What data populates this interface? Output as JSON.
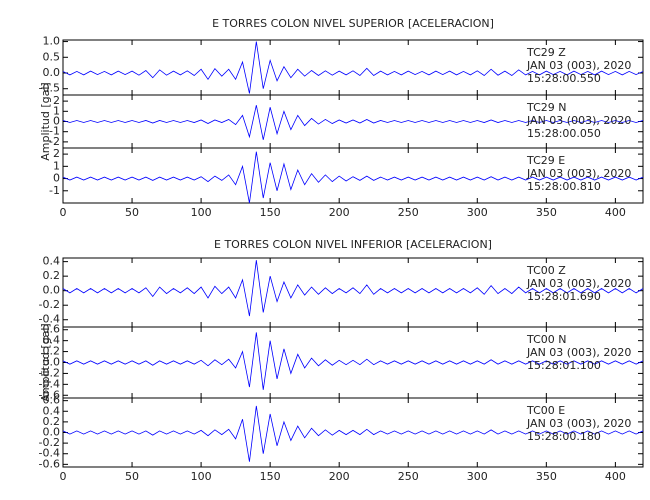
{
  "chart_data": [
    {
      "type": "line",
      "title": "E TORRES COLON NIVEL SUPERIOR [ACELERACION]",
      "ylabel": "Amplitud [gal]",
      "xlim": [
        0,
        420
      ],
      "xticks": [
        0,
        50,
        100,
        150,
        200,
        250,
        300,
        350,
        400
      ],
      "x": [
        0,
        5,
        10,
        15,
        20,
        25,
        30,
        35,
        40,
        45,
        50,
        55,
        60,
        65,
        70,
        75,
        80,
        85,
        90,
        95,
        100,
        105,
        110,
        115,
        120,
        125,
        130,
        135,
        140,
        145,
        150,
        155,
        160,
        165,
        170,
        175,
        180,
        185,
        190,
        195,
        200,
        205,
        210,
        215,
        220,
        225,
        230,
        235,
        240,
        245,
        250,
        255,
        260,
        265,
        270,
        275,
        280,
        285,
        290,
        295,
        300,
        305,
        310,
        315,
        320,
        325,
        330,
        335,
        340,
        345,
        350,
        355,
        360,
        365,
        370,
        375,
        380,
        385,
        390,
        395,
        400,
        405,
        410,
        415,
        420
      ],
      "panels": [
        {
          "ylim": [
            -0.7,
            1.05
          ],
          "yticks": [
            {
              "value": 1,
              "label": "1.0"
            },
            0.5,
            {
              "value": 0,
              "label": "0.0"
            },
            -0.5
          ],
          "annotations": [
            "JAN 03 (003), 2020",
            "15:28:00.550"
          ],
          "series": [
            {
              "name": "TC29 Z",
              "color": "#0000ff",
              "values": [
                0.05,
                -0.06,
                0.05,
                -0.06,
                0.06,
                -0.05,
                0.05,
                -0.06,
                0.06,
                -0.05,
                0.06,
                -0.07,
                0.08,
                -0.15,
                0.1,
                -0.07,
                0.06,
                -0.06,
                0.07,
                -0.08,
                0.12,
                -0.2,
                0.14,
                -0.1,
                0.12,
                -0.2,
                0.35,
                -0.65,
                1.0,
                -0.5,
                0.4,
                -0.25,
                0.2,
                -0.15,
                0.12,
                -0.1,
                0.08,
                -0.08,
                0.07,
                -0.07,
                0.06,
                -0.06,
                0.07,
                -0.08,
                0.15,
                -0.08,
                0.06,
                -0.06,
                0.05,
                -0.06,
                0.06,
                -0.05,
                0.05,
                -0.06,
                0.06,
                -0.05,
                0.06,
                -0.06,
                0.05,
                -0.06,
                0.07,
                -0.08,
                0.12,
                -0.07,
                0.06,
                -0.08,
                0.1,
                -0.06,
                0.05,
                -0.06,
                0.06,
                -0.05,
                0.05,
                -0.06,
                0.06,
                -0.05,
                0.05,
                -0.06,
                0.06,
                -0.05,
                0.05,
                -0.06,
                0.05,
                -0.05,
                0.05
              ]
            }
          ]
        },
        {
          "ylim": [
            -2.6,
            2.6
          ],
          "yticks": [
            2,
            1,
            0,
            -1,
            -2
          ],
          "annotations": [
            "JAN 03 (003), 2020",
            "15:28:00.050"
          ],
          "series": [
            {
              "name": "TC29 N",
              "color": "#0000ff",
              "values": [
                0.1,
                -0.1,
                0.1,
                -0.1,
                0.1,
                -0.1,
                0.1,
                -0.1,
                0.1,
                -0.1,
                0.1,
                -0.1,
                0.1,
                -0.15,
                0.1,
                -0.1,
                0.1,
                -0.1,
                0.1,
                -0.1,
                0.15,
                -0.2,
                0.15,
                -0.1,
                0.2,
                -0.3,
                0.6,
                -1.5,
                1.6,
                -1.8,
                1.4,
                -1.2,
                1.0,
                -0.8,
                0.6,
                -0.4,
                0.3,
                -0.25,
                0.2,
                -0.2,
                0.15,
                -0.15,
                0.15,
                -0.15,
                0.2,
                -0.15,
                0.1,
                -0.1,
                0.1,
                -0.1,
                0.1,
                -0.1,
                0.1,
                -0.1,
                0.1,
                -0.1,
                0.1,
                -0.1,
                0.1,
                -0.1,
                0.1,
                -0.1,
                0.15,
                -0.1,
                0.1,
                -0.1,
                0.1,
                -0.1,
                0.1,
                -0.1,
                0.1,
                -0.1,
                0.1,
                -0.1,
                0.1,
                -0.1,
                0.1,
                -0.1,
                0.1,
                -0.1,
                0.1,
                -0.1,
                0.1,
                -0.1,
                0.1
              ]
            }
          ]
        },
        {
          "ylim": [
            -2,
            2.5
          ],
          "yticks": [
            2,
            1,
            0,
            -1
          ],
          "annotations": [
            "JAN 03 (003), 2020",
            "15:28:00.810"
          ],
          "series": [
            {
              "name": "TC29 E",
              "color": "#0000ff",
              "values": [
                0.12,
                -0.12,
                0.12,
                -0.12,
                0.12,
                -0.12,
                0.12,
                -0.12,
                0.12,
                -0.12,
                0.12,
                -0.12,
                0.12,
                -0.15,
                0.12,
                -0.12,
                0.12,
                -0.12,
                0.12,
                -0.12,
                0.15,
                -0.25,
                0.2,
                -0.15,
                0.3,
                -0.5,
                1.0,
                -2.0,
                2.2,
                -1.6,
                1.3,
                -1.0,
                1.2,
                -0.9,
                0.7,
                -0.5,
                0.4,
                -0.3,
                0.3,
                -0.25,
                0.2,
                -0.2,
                0.15,
                -0.15,
                0.2,
                -0.15,
                0.12,
                -0.12,
                0.12,
                -0.12,
                0.12,
                -0.12,
                0.12,
                -0.12,
                0.12,
                -0.12,
                0.12,
                -0.12,
                0.12,
                -0.12,
                0.12,
                -0.12,
                0.15,
                -0.12,
                0.12,
                -0.12,
                0.12,
                -0.12,
                0.12,
                -0.12,
                0.12,
                -0.12,
                0.12,
                -0.12,
                0.12,
                -0.12,
                0.12,
                -0.12,
                0.12,
                -0.12,
                0.12,
                -0.12,
                0.12,
                -0.12,
                0.12
              ]
            }
          ]
        }
      ]
    },
    {
      "type": "line",
      "title": "E TORRES COLON NIVEL INFERIOR [ACELERACION]",
      "ylabel": "Amplitud [gal]",
      "xlim": [
        0,
        420
      ],
      "xticks": [
        0,
        50,
        100,
        150,
        200,
        250,
        300,
        350,
        400
      ],
      "x": [
        0,
        5,
        10,
        15,
        20,
        25,
        30,
        35,
        40,
        45,
        50,
        55,
        60,
        65,
        70,
        75,
        80,
        85,
        90,
        95,
        100,
        105,
        110,
        115,
        120,
        125,
        130,
        135,
        140,
        145,
        150,
        155,
        160,
        165,
        170,
        175,
        180,
        185,
        190,
        195,
        200,
        205,
        210,
        215,
        220,
        225,
        230,
        235,
        240,
        245,
        250,
        255,
        260,
        265,
        270,
        275,
        280,
        285,
        290,
        295,
        300,
        305,
        310,
        315,
        320,
        325,
        330,
        335,
        340,
        345,
        350,
        355,
        360,
        365,
        370,
        375,
        380,
        385,
        390,
        395,
        400,
        405,
        410,
        415,
        420
      ],
      "panels": [
        {
          "ylim": [
            -0.5,
            0.45
          ],
          "yticks": [
            0.4,
            0.2,
            {
              "value": 0,
              "label": "0.0"
            },
            -0.2,
            -0.4
          ],
          "annotations": [
            "JAN 03 (003), 2020",
            "15:28:01.690"
          ],
          "series": [
            {
              "name": "TC00 Z",
              "color": "#0000ff",
              "values": [
                0.03,
                -0.03,
                0.03,
                -0.03,
                0.03,
                -0.03,
                0.03,
                -0.03,
                0.03,
                -0.03,
                0.03,
                -0.03,
                0.04,
                -0.08,
                0.05,
                -0.04,
                0.03,
                -0.03,
                0.04,
                -0.04,
                0.05,
                -0.1,
                0.06,
                -0.04,
                0.05,
                -0.1,
                0.15,
                -0.35,
                0.42,
                -0.3,
                0.2,
                -0.15,
                0.12,
                -0.1,
                0.08,
                -0.06,
                0.05,
                -0.05,
                0.04,
                -0.04,
                0.03,
                -0.03,
                0.04,
                -0.04,
                0.08,
                -0.05,
                0.03,
                -0.03,
                0.03,
                -0.03,
                0.03,
                -0.03,
                0.03,
                -0.03,
                0.03,
                -0.03,
                0.03,
                -0.03,
                0.03,
                -0.03,
                0.04,
                -0.05,
                0.07,
                -0.04,
                0.03,
                -0.04,
                0.05,
                -0.03,
                0.03,
                -0.03,
                0.03,
                -0.03,
                0.03,
                -0.03,
                0.03,
                -0.03,
                0.03,
                -0.03,
                0.03,
                -0.03,
                0.03,
                -0.03,
                0.03,
                -0.03,
                0.03
              ]
            }
          ]
        },
        {
          "ylim": [
            -0.65,
            0.65
          ],
          "yticks": [
            0.6,
            0.4,
            0.2,
            {
              "value": 0,
              "label": "0.0"
            },
            -0.2,
            -0.4,
            -0.6
          ],
          "annotations": [
            "JAN 03 (003), 2020",
            "15:28:01.100"
          ],
          "series": [
            {
              "name": "TC00 N",
              "color": "#0000ff",
              "values": [
                0.03,
                -0.03,
                0.03,
                -0.03,
                0.03,
                -0.03,
                0.03,
                -0.03,
                0.03,
                -0.03,
                0.03,
                -0.03,
                0.03,
                -0.05,
                0.03,
                -0.03,
                0.03,
                -0.03,
                0.03,
                -0.03,
                0.04,
                -0.06,
                0.05,
                -0.04,
                0.06,
                -0.1,
                0.2,
                -0.45,
                0.55,
                -0.5,
                0.4,
                -0.3,
                0.25,
                -0.2,
                0.15,
                -0.1,
                0.08,
                -0.06,
                0.05,
                -0.05,
                0.04,
                -0.04,
                0.04,
                -0.04,
                0.06,
                -0.04,
                0.03,
                -0.03,
                0.03,
                -0.03,
                0.03,
                -0.03,
                0.03,
                -0.03,
                0.03,
                -0.03,
                0.03,
                -0.03,
                0.03,
                -0.03,
                0.03,
                -0.03,
                0.05,
                -0.03,
                0.03,
                -0.03,
                0.03,
                -0.03,
                0.03,
                -0.03,
                0.03,
                -0.03,
                0.03,
                -0.03,
                0.03,
                -0.03,
                0.03,
                -0.03,
                0.03,
                -0.03,
                0.03,
                -0.03,
                0.03,
                -0.03,
                0.03
              ]
            }
          ]
        },
        {
          "ylim": [
            -0.65,
            0.65
          ],
          "yticks": [
            0.6,
            0.4,
            0.2,
            {
              "value": 0,
              "label": "0.0"
            },
            -0.2,
            -0.4,
            -0.6
          ],
          "annotations": [
            "JAN 03 (003), 2020",
            "15:28:00.180"
          ],
          "series": [
            {
              "name": "TC00 E",
              "color": "#0000ff",
              "values": [
                0.03,
                -0.03,
                0.03,
                -0.03,
                0.03,
                -0.03,
                0.03,
                -0.03,
                0.03,
                -0.03,
                0.03,
                -0.03,
                0.03,
                -0.05,
                0.03,
                -0.03,
                0.03,
                -0.03,
                0.03,
                -0.03,
                0.04,
                -0.06,
                0.05,
                -0.04,
                0.06,
                -0.12,
                0.25,
                -0.55,
                0.5,
                -0.4,
                0.35,
                -0.25,
                0.2,
                -0.15,
                0.12,
                -0.1,
                0.08,
                -0.06,
                0.05,
                -0.05,
                0.04,
                -0.04,
                0.04,
                -0.04,
                0.06,
                -0.04,
                0.03,
                -0.03,
                0.03,
                -0.03,
                0.03,
                -0.03,
                0.03,
                -0.03,
                0.03,
                -0.03,
                0.03,
                -0.03,
                0.03,
                -0.03,
                0.03,
                -0.03,
                0.05,
                -0.03,
                0.03,
                -0.03,
                0.03,
                -0.03,
                0.03,
                -0.03,
                0.03,
                -0.03,
                0.03,
                -0.03,
                0.03,
                -0.03,
                0.03,
                -0.03,
                0.03,
                -0.03,
                0.03,
                -0.03,
                0.03,
                -0.03,
                0.03
              ]
            }
          ]
        }
      ]
    }
  ]
}
